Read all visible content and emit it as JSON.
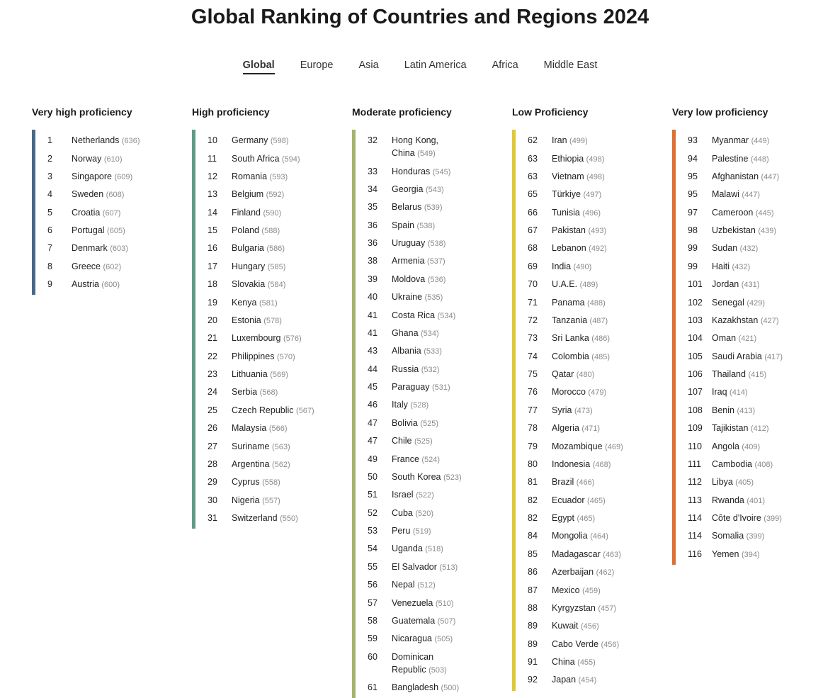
{
  "title": "Global Ranking of Countries and Regions 2024",
  "tabs": [
    "Global",
    "Europe",
    "Asia",
    "Latin America",
    "Africa",
    "Middle East"
  ],
  "columns": [
    {
      "heading": "Very high proficiency",
      "color": "#476a8a",
      "entries": [
        [
          1,
          "Netherlands",
          "(636)"
        ],
        [
          2,
          "Norway",
          "(610)"
        ],
        [
          3,
          "Singapore",
          "(609)"
        ],
        [
          4,
          "Sweden",
          "(608)"
        ],
        [
          5,
          "Croatia",
          "(607)"
        ],
        [
          6,
          "Portugal",
          "(605)"
        ],
        [
          7,
          "Denmark",
          "(603)"
        ],
        [
          8,
          "Greece",
          "(602)"
        ],
        [
          9,
          "Austria",
          "(600)"
        ]
      ]
    },
    {
      "heading": "High proficiency",
      "color": "#5f9c86",
      "entries": [
        [
          10,
          "Germany",
          "(598)"
        ],
        [
          11,
          "South Africa",
          "(594)"
        ],
        [
          12,
          "Romania",
          "(593)"
        ],
        [
          13,
          "Belgium",
          "(592)"
        ],
        [
          14,
          "Finland",
          "(590)"
        ],
        [
          15,
          "Poland",
          "(588)"
        ],
        [
          16,
          "Bulgaria",
          "(586)"
        ],
        [
          17,
          "Hungary",
          "(585)"
        ],
        [
          18,
          "Slovakia",
          "(584)"
        ],
        [
          19,
          "Kenya",
          "(581)"
        ],
        [
          20,
          "Estonia",
          "(578)"
        ],
        [
          21,
          "Luxembourg",
          "(576)"
        ],
        [
          22,
          "Philippines",
          "(570)"
        ],
        [
          23,
          "Lithuania",
          "(569)"
        ],
        [
          24,
          "Serbia",
          "(568)"
        ],
        [
          25,
          "Czech Republic",
          "(567)"
        ],
        [
          26,
          "Malaysia",
          "(566)"
        ],
        [
          27,
          "Suriname",
          "(563)"
        ],
        [
          28,
          "Argentina",
          "(562)"
        ],
        [
          29,
          "Cyprus",
          "(558)"
        ],
        [
          30,
          "Nigeria",
          "(557)"
        ],
        [
          31,
          "Switzerland",
          "(550)"
        ]
      ]
    },
    {
      "heading": "Moderate proficiency",
      "color": "#a4b36e",
      "entries": [
        [
          32,
          "Hong Kong,\nChina",
          "(549)"
        ],
        [
          33,
          "Honduras",
          "(545)"
        ],
        [
          34,
          "Georgia",
          "(543)"
        ],
        [
          35,
          "Belarus",
          "(539)"
        ],
        [
          36,
          "Spain",
          "(538)"
        ],
        [
          36,
          "Uruguay",
          "(538)"
        ],
        [
          38,
          "Armenia",
          "(537)"
        ],
        [
          39,
          "Moldova",
          "(536)"
        ],
        [
          40,
          "Ukraine",
          "(535)"
        ],
        [
          41,
          "Costa Rica",
          "(534)"
        ],
        [
          41,
          "Ghana",
          "(534)"
        ],
        [
          43,
          "Albania",
          "(533)"
        ],
        [
          44,
          "Russia",
          "(532)"
        ],
        [
          45,
          "Paraguay",
          "(531)"
        ],
        [
          46,
          "Italy",
          "(528)"
        ],
        [
          47,
          "Bolivia",
          "(525)"
        ],
        [
          47,
          "Chile",
          "(525)"
        ],
        [
          49,
          "France",
          "(524)"
        ],
        [
          50,
          "South Korea",
          "(523)"
        ],
        [
          51,
          "Israel",
          "(522)"
        ],
        [
          52,
          "Cuba",
          "(520)"
        ],
        [
          53,
          "Peru",
          "(519)"
        ],
        [
          54,
          "Uganda",
          "(518)"
        ],
        [
          55,
          "El Salvador",
          "(513)"
        ],
        [
          56,
          "Nepal",
          "(512)"
        ],
        [
          57,
          "Venezuela",
          "(510)"
        ],
        [
          58,
          "Guatemala",
          "(507)"
        ],
        [
          59,
          "Nicaragua",
          "(505)"
        ],
        [
          60,
          "Dominican\nRepublic",
          "(503)"
        ],
        [
          61,
          "Bangladesh",
          "(500)"
        ]
      ]
    },
    {
      "heading": "Low Proficiency",
      "color": "#e1c73a",
      "entries": [
        [
          62,
          "Iran",
          "(499)"
        ],
        [
          63,
          "Ethiopia",
          "(498)"
        ],
        [
          63,
          "Vietnam",
          "(498)"
        ],
        [
          65,
          "Türkiye",
          "(497)"
        ],
        [
          66,
          "Tunisia",
          "(496)"
        ],
        [
          67,
          "Pakistan",
          "(493)"
        ],
        [
          68,
          "Lebanon",
          "(492)"
        ],
        [
          69,
          "India",
          "(490)"
        ],
        [
          70,
          "U.A.E.",
          "(489)"
        ],
        [
          71,
          "Panama",
          "(488)"
        ],
        [
          72,
          "Tanzania",
          "(487)"
        ],
        [
          73,
          "Sri Lanka",
          "(486)"
        ],
        [
          74,
          "Colombia",
          "(485)"
        ],
        [
          75,
          "Qatar",
          "(480)"
        ],
        [
          76,
          "Morocco",
          "(479)"
        ],
        [
          77,
          "Syria",
          "(473)"
        ],
        [
          78,
          "Algeria",
          "(471)"
        ],
        [
          79,
          "Mozambique",
          "(469)"
        ],
        [
          80,
          "Indonesia",
          "(468)"
        ],
        [
          81,
          "Brazil",
          "(466)"
        ],
        [
          82,
          "Ecuador",
          "(465)"
        ],
        [
          82,
          "Egypt",
          "(465)"
        ],
        [
          84,
          "Mongolia",
          "(464)"
        ],
        [
          85,
          "Madagascar",
          "(463)"
        ],
        [
          86,
          "Azerbaijan",
          "(462)"
        ],
        [
          87,
          "Mexico",
          "(459)"
        ],
        [
          88,
          "Kyrgyzstan",
          "(457)"
        ],
        [
          89,
          "Kuwait",
          "(456)"
        ],
        [
          89,
          "Cabo Verde",
          "(456)"
        ],
        [
          91,
          "China",
          "(455)"
        ],
        [
          92,
          "Japan",
          "(454)"
        ]
      ]
    },
    {
      "heading": "Very low proficiency",
      "color": "#dc6f35",
      "entries": [
        [
          93,
          "Myanmar",
          "(449)"
        ],
        [
          94,
          "Palestine",
          "(448)"
        ],
        [
          95,
          "Afghanistan",
          "(447)"
        ],
        [
          95,
          "Malawi",
          "(447)"
        ],
        [
          97,
          "Cameroon",
          "(445)"
        ],
        [
          98,
          "Uzbekistan",
          "(439)"
        ],
        [
          99,
          "Sudan",
          "(432)"
        ],
        [
          99,
          "Haiti",
          "(432)"
        ],
        [
          101,
          "Jordan",
          "(431)"
        ],
        [
          102,
          "Senegal",
          "(429)"
        ],
        [
          103,
          "Kazakhstan",
          "(427)"
        ],
        [
          104,
          "Oman",
          "(421)"
        ],
        [
          105,
          "Saudi Arabia",
          "(417)"
        ],
        [
          106,
          "Thailand",
          "(415)"
        ],
        [
          107,
          "Iraq",
          "(414)"
        ],
        [
          108,
          "Benin",
          "(413)"
        ],
        [
          109,
          "Tajikistan",
          "(412)"
        ],
        [
          110,
          "Angola",
          "(409)"
        ],
        [
          111,
          "Cambodia",
          "(408)"
        ],
        [
          112,
          "Libya",
          "(405)"
        ],
        [
          113,
          "Rwanda",
          "(401)"
        ],
        [
          114,
          "Côte d'Ivoire",
          "(399)"
        ],
        [
          114,
          "Somalia",
          "(399)"
        ],
        [
          116,
          "Yemen",
          "(394)"
        ]
      ]
    }
  ]
}
